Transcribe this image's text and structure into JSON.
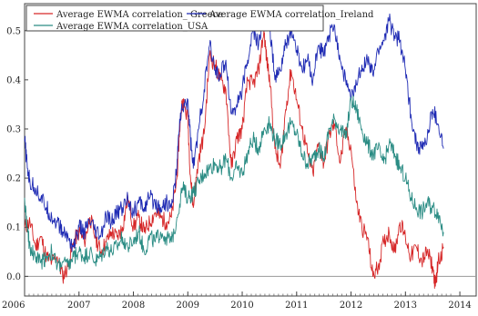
{
  "chart_data": {
    "type": "line",
    "title": "",
    "xlabel": "",
    "ylabel": "",
    "xlim": [
      2006.0,
      2014.3
    ],
    "ylim": [
      -0.04,
      0.555
    ],
    "x_ticks": [
      "2006",
      "2007",
      "2008",
      "2009",
      "2010",
      "2011",
      "2012",
      "2013",
      "2014"
    ],
    "y_ticks": [
      "0.0",
      "0.1",
      "0.2",
      "0.3",
      "0.4",
      "0.5"
    ],
    "zero_line": true,
    "grid": false,
    "legend_position": "top-left",
    "series": [
      {
        "name": "Average EWMA correlation_ Greece",
        "color": "#d62728",
        "points": [
          [
            2006.0,
            0.1
          ],
          [
            2006.1,
            0.11
          ],
          [
            2006.2,
            0.06
          ],
          [
            2006.3,
            0.08
          ],
          [
            2006.4,
            0.04
          ],
          [
            2006.5,
            0.03
          ],
          [
            2006.6,
            0.04
          ],
          [
            2006.7,
            0.0
          ],
          [
            2006.8,
            0.02
          ],
          [
            2006.9,
            0.07
          ],
          [
            2007.0,
            0.09
          ],
          [
            2007.1,
            0.07
          ],
          [
            2007.2,
            0.12
          ],
          [
            2007.3,
            0.08
          ],
          [
            2007.4,
            0.05
          ],
          [
            2007.5,
            0.07
          ],
          [
            2007.6,
            0.09
          ],
          [
            2007.7,
            0.08
          ],
          [
            2007.8,
            0.1
          ],
          [
            2007.9,
            0.16
          ],
          [
            2008.0,
            0.1
          ],
          [
            2008.1,
            0.12
          ],
          [
            2008.2,
            0.09
          ],
          [
            2008.3,
            0.11
          ],
          [
            2008.4,
            0.13
          ],
          [
            2008.5,
            0.12
          ],
          [
            2008.6,
            0.11
          ],
          [
            2008.7,
            0.12
          ],
          [
            2008.8,
            0.2
          ],
          [
            2008.85,
            0.3
          ],
          [
            2008.9,
            0.36
          ],
          [
            2009.0,
            0.32
          ],
          [
            2009.05,
            0.2
          ],
          [
            2009.1,
            0.14
          ],
          [
            2009.2,
            0.24
          ],
          [
            2009.3,
            0.29
          ],
          [
            2009.4,
            0.45
          ],
          [
            2009.5,
            0.43
          ],
          [
            2009.6,
            0.4
          ],
          [
            2009.7,
            0.38
          ],
          [
            2009.8,
            0.22
          ],
          [
            2009.9,
            0.28
          ],
          [
            2010.0,
            0.3
          ],
          [
            2010.1,
            0.4
          ],
          [
            2010.2,
            0.39
          ],
          [
            2010.3,
            0.42
          ],
          [
            2010.4,
            0.5
          ],
          [
            2010.45,
            0.44
          ],
          [
            2010.5,
            0.41
          ],
          [
            2010.6,
            0.26
          ],
          [
            2010.7,
            0.22
          ],
          [
            2010.8,
            0.34
          ],
          [
            2010.9,
            0.42
          ],
          [
            2011.0,
            0.36
          ],
          [
            2011.1,
            0.3
          ],
          [
            2011.2,
            0.25
          ],
          [
            2011.3,
            0.21
          ],
          [
            2011.4,
            0.27
          ],
          [
            2011.5,
            0.23
          ],
          [
            2011.6,
            0.29
          ],
          [
            2011.7,
            0.31
          ],
          [
            2011.8,
            0.23
          ],
          [
            2011.9,
            0.3
          ],
          [
            2012.0,
            0.26
          ],
          [
            2012.1,
            0.15
          ],
          [
            2012.2,
            0.1
          ],
          [
            2012.3,
            0.08
          ],
          [
            2012.4,
            0.0
          ],
          [
            2012.5,
            0.02
          ],
          [
            2012.6,
            0.07
          ],
          [
            2012.7,
            0.09
          ],
          [
            2012.8,
            0.05
          ],
          [
            2012.9,
            0.11
          ],
          [
            2013.0,
            0.08
          ],
          [
            2013.1,
            0.04
          ],
          [
            2013.2,
            0.06
          ],
          [
            2013.3,
            0.03
          ],
          [
            2013.4,
            0.05
          ],
          [
            2013.5,
            0.02
          ],
          [
            2013.55,
            -0.02
          ],
          [
            2013.6,
            0.03
          ],
          [
            2013.7,
            0.06
          ]
        ]
      },
      {
        "name": "Average EWMA correlation_Ireland",
        "color": "#1f2bb4",
        "points": [
          [
            2006.0,
            0.28
          ],
          [
            2006.05,
            0.22
          ],
          [
            2006.1,
            0.19
          ],
          [
            2006.2,
            0.18
          ],
          [
            2006.3,
            0.16
          ],
          [
            2006.4,
            0.14
          ],
          [
            2006.5,
            0.12
          ],
          [
            2006.6,
            0.11
          ],
          [
            2006.7,
            0.09
          ],
          [
            2006.8,
            0.08
          ],
          [
            2006.9,
            0.06
          ],
          [
            2007.0,
            0.1
          ],
          [
            2007.1,
            0.09
          ],
          [
            2007.2,
            0.11
          ],
          [
            2007.3,
            0.09
          ],
          [
            2007.4,
            0.08
          ],
          [
            2007.5,
            0.12
          ],
          [
            2007.6,
            0.11
          ],
          [
            2007.7,
            0.13
          ],
          [
            2007.8,
            0.14
          ],
          [
            2007.9,
            0.16
          ],
          [
            2008.0,
            0.13
          ],
          [
            2008.1,
            0.15
          ],
          [
            2008.2,
            0.14
          ],
          [
            2008.3,
            0.16
          ],
          [
            2008.4,
            0.15
          ],
          [
            2008.5,
            0.14
          ],
          [
            2008.6,
            0.15
          ],
          [
            2008.7,
            0.14
          ],
          [
            2008.8,
            0.22
          ],
          [
            2008.85,
            0.32
          ],
          [
            2008.9,
            0.34
          ],
          [
            2009.0,
            0.36
          ],
          [
            2009.05,
            0.28
          ],
          [
            2009.1,
            0.22
          ],
          [
            2009.2,
            0.3
          ],
          [
            2009.3,
            0.38
          ],
          [
            2009.4,
            0.47
          ],
          [
            2009.5,
            0.42
          ],
          [
            2009.6,
            0.41
          ],
          [
            2009.7,
            0.44
          ],
          [
            2009.8,
            0.33
          ],
          [
            2009.9,
            0.35
          ],
          [
            2010.0,
            0.38
          ],
          [
            2010.1,
            0.44
          ],
          [
            2010.2,
            0.5
          ],
          [
            2010.3,
            0.47
          ],
          [
            2010.4,
            0.54
          ],
          [
            2010.5,
            0.52
          ],
          [
            2010.6,
            0.4
          ],
          [
            2010.7,
            0.42
          ],
          [
            2010.8,
            0.47
          ],
          [
            2010.9,
            0.5
          ],
          [
            2011.0,
            0.46
          ],
          [
            2011.1,
            0.42
          ],
          [
            2011.2,
            0.44
          ],
          [
            2011.3,
            0.4
          ],
          [
            2011.4,
            0.47
          ],
          [
            2011.5,
            0.45
          ],
          [
            2011.6,
            0.49
          ],
          [
            2011.7,
            0.51
          ],
          [
            2011.8,
            0.44
          ],
          [
            2011.9,
            0.4
          ],
          [
            2012.0,
            0.36
          ],
          [
            2012.1,
            0.39
          ],
          [
            2012.2,
            0.43
          ],
          [
            2012.3,
            0.44
          ],
          [
            2012.4,
            0.41
          ],
          [
            2012.5,
            0.46
          ],
          [
            2012.6,
            0.48
          ],
          [
            2012.7,
            0.52
          ],
          [
            2012.8,
            0.49
          ],
          [
            2012.9,
            0.48
          ],
          [
            2013.0,
            0.42
          ],
          [
            2013.1,
            0.33
          ],
          [
            2013.2,
            0.27
          ],
          [
            2013.3,
            0.26
          ],
          [
            2013.4,
            0.28
          ],
          [
            2013.5,
            0.34
          ],
          [
            2013.6,
            0.31
          ],
          [
            2013.7,
            0.26
          ]
        ]
      },
      {
        "name": "Average EWMA correlation_USA",
        "color": "#2a8c84",
        "points": [
          [
            2006.0,
            0.16
          ],
          [
            2006.05,
            0.09
          ],
          [
            2006.1,
            0.06
          ],
          [
            2006.2,
            0.04
          ],
          [
            2006.3,
            0.03
          ],
          [
            2006.4,
            0.04
          ],
          [
            2006.5,
            0.05
          ],
          [
            2006.6,
            0.02
          ],
          [
            2006.7,
            0.03
          ],
          [
            2006.8,
            0.02
          ],
          [
            2006.9,
            0.04
          ],
          [
            2007.0,
            0.05
          ],
          [
            2007.1,
            0.04
          ],
          [
            2007.2,
            0.05
          ],
          [
            2007.3,
            0.03
          ],
          [
            2007.4,
            0.04
          ],
          [
            2007.5,
            0.06
          ],
          [
            2007.6,
            0.05
          ],
          [
            2007.7,
            0.06
          ],
          [
            2007.8,
            0.08
          ],
          [
            2007.9,
            0.06
          ],
          [
            2008.0,
            0.07
          ],
          [
            2008.1,
            0.09
          ],
          [
            2008.2,
            0.05
          ],
          [
            2008.3,
            0.08
          ],
          [
            2008.4,
            0.07
          ],
          [
            2008.5,
            0.09
          ],
          [
            2008.6,
            0.08
          ],
          [
            2008.7,
            0.07
          ],
          [
            2008.8,
            0.12
          ],
          [
            2008.9,
            0.18
          ],
          [
            2009.0,
            0.16
          ],
          [
            2009.1,
            0.17
          ],
          [
            2009.2,
            0.19
          ],
          [
            2009.3,
            0.21
          ],
          [
            2009.4,
            0.22
          ],
          [
            2009.5,
            0.23
          ],
          [
            2009.6,
            0.22
          ],
          [
            2009.7,
            0.24
          ],
          [
            2009.8,
            0.2
          ],
          [
            2009.9,
            0.22
          ],
          [
            2010.0,
            0.21
          ],
          [
            2010.1,
            0.25
          ],
          [
            2010.2,
            0.28
          ],
          [
            2010.3,
            0.26
          ],
          [
            2010.4,
            0.3
          ],
          [
            2010.5,
            0.31
          ],
          [
            2010.6,
            0.28
          ],
          [
            2010.7,
            0.27
          ],
          [
            2010.8,
            0.29
          ],
          [
            2010.9,
            0.31
          ],
          [
            2011.0,
            0.29
          ],
          [
            2011.1,
            0.25
          ],
          [
            2011.2,
            0.23
          ],
          [
            2011.3,
            0.24
          ],
          [
            2011.4,
            0.26
          ],
          [
            2011.5,
            0.24
          ],
          [
            2011.6,
            0.3
          ],
          [
            2011.7,
            0.32
          ],
          [
            2011.8,
            0.3
          ],
          [
            2011.9,
            0.28
          ],
          [
            2012.0,
            0.36
          ],
          [
            2012.1,
            0.34
          ],
          [
            2012.2,
            0.3
          ],
          [
            2012.3,
            0.27
          ],
          [
            2012.4,
            0.25
          ],
          [
            2012.5,
            0.26
          ],
          [
            2012.6,
            0.23
          ],
          [
            2012.7,
            0.27
          ],
          [
            2012.8,
            0.25
          ],
          [
            2012.9,
            0.22
          ],
          [
            2013.0,
            0.2
          ],
          [
            2013.1,
            0.16
          ],
          [
            2013.2,
            0.14
          ],
          [
            2013.3,
            0.13
          ],
          [
            2013.4,
            0.15
          ],
          [
            2013.5,
            0.14
          ],
          [
            2013.6,
            0.13
          ],
          [
            2013.7,
            0.09
          ]
        ]
      }
    ]
  }
}
